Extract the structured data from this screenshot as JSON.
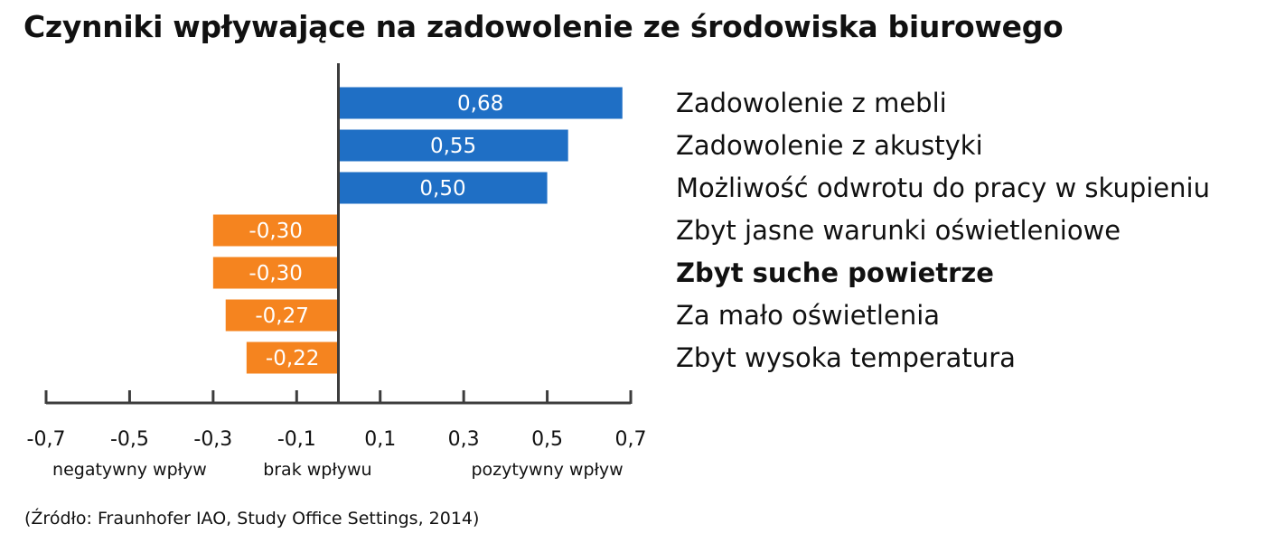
{
  "title": "Czynniki wpływające na zadowolenie ze środowiska biurowego",
  "source": "(Źródło: Fraunhofer IAO, Study Office Settings, 2014)",
  "colors": {
    "positive": "#1f6fc5",
    "negative": "#f5841f",
    "axis": "#3c3c3c",
    "text": "#111111"
  },
  "chart_data": {
    "type": "bar",
    "orientation": "horizontal",
    "categories": [
      "Zadowolenie z mebli",
      "Zadowolenie z akustyki",
      "Możliwość odwrotu do pracy w skupieniu",
      "Zbyt jasne warunki oświetleniowe",
      "Zbyt suche powietrze",
      "Za mało oświetlenia",
      "Zbyt wysoka temperatura"
    ],
    "values": [
      0.68,
      0.55,
      0.5,
      -0.3,
      -0.3,
      -0.27,
      -0.22
    ],
    "value_labels": [
      "0,68",
      "0,55",
      "0,50",
      "-0,30",
      "-0,30",
      "-0,27",
      "-0,22"
    ],
    "bold_categories": [
      "Zbyt suche powietrze"
    ],
    "xlim": [
      -0.7,
      0.7
    ],
    "x_ticks": [
      -0.7,
      -0.5,
      -0.3,
      -0.1,
      0.1,
      0.3,
      0.5,
      0.7
    ],
    "x_tick_labels": [
      "-0,7",
      "-0,5",
      "-0,3",
      "-0,1",
      "0,1",
      "0,3",
      "0,5",
      "0,7"
    ],
    "x_annotations": [
      {
        "text": "negatywny wpływ",
        "at": -0.5
      },
      {
        "text": "brak wpływu",
        "at": -0.05
      },
      {
        "text": "pozytywny wpływ",
        "at": 0.5
      }
    ],
    "grid": false,
    "legend": "none"
  }
}
